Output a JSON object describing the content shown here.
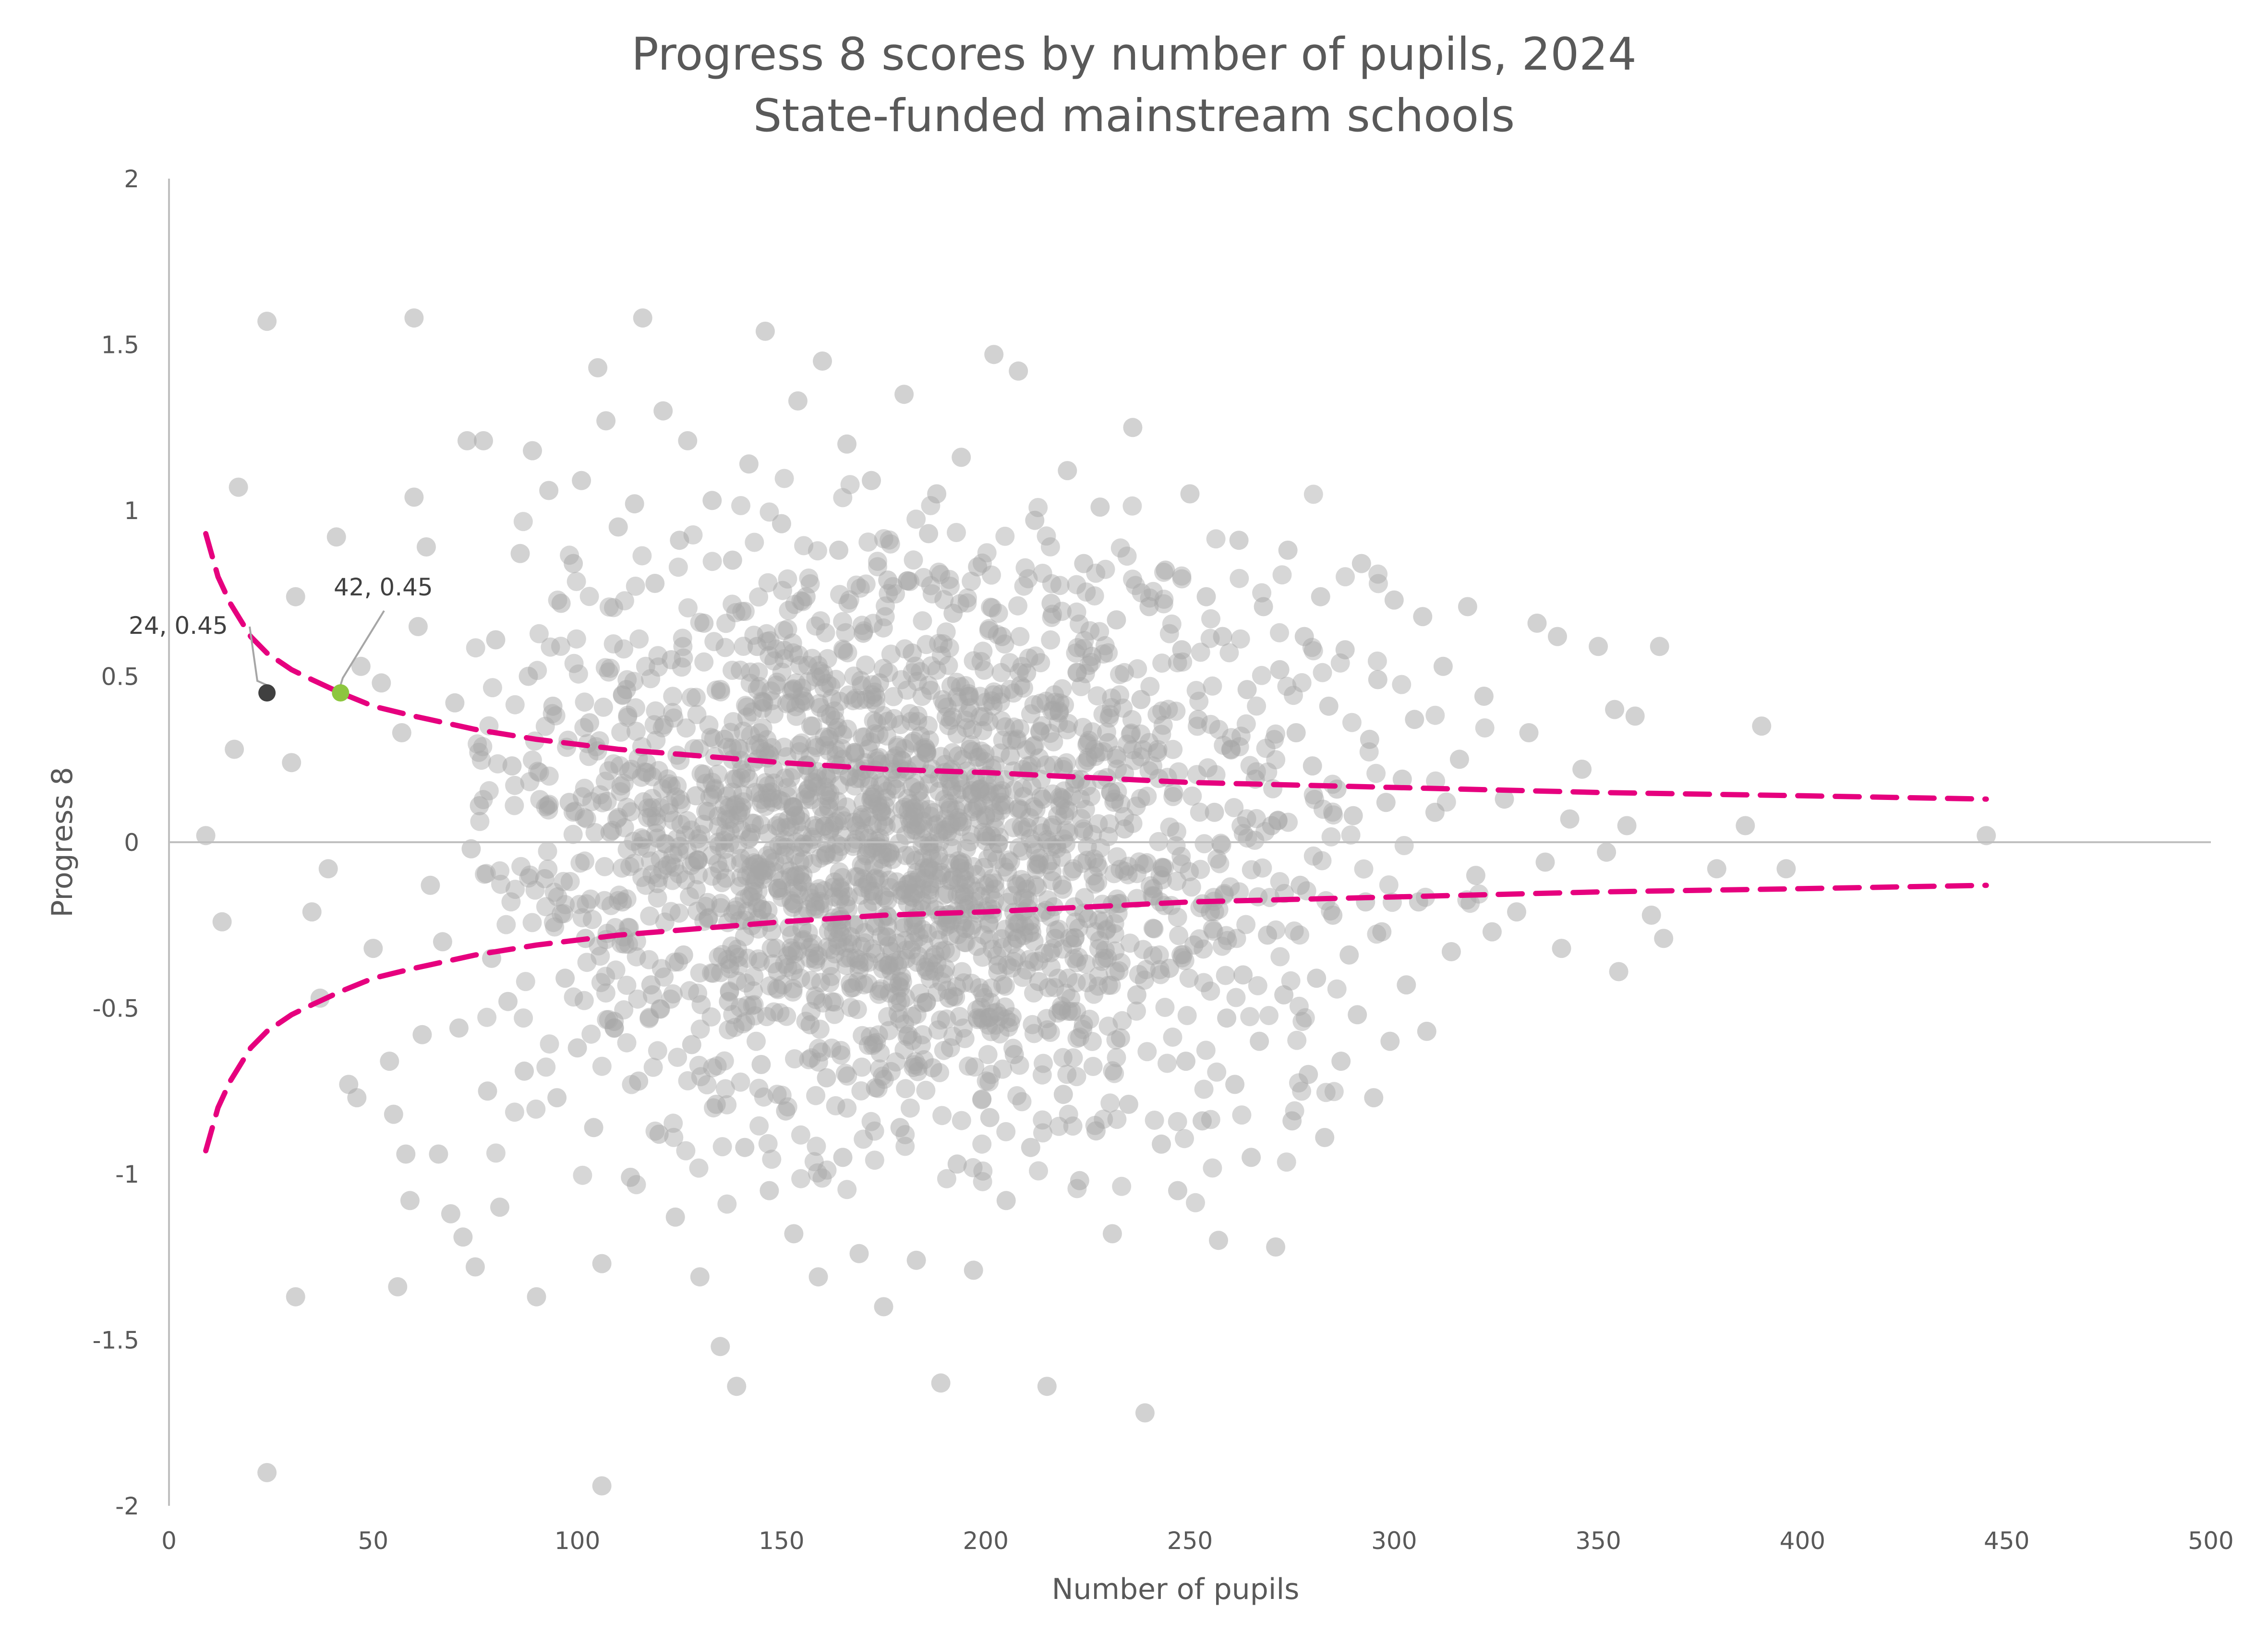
{
  "chart_data": {
    "type": "scatter",
    "title": "Progress 8 scores by number of pupils, 2024",
    "subtitle": "State-funded mainstream schools",
    "xlabel": "Number of pupils",
    "ylabel": "Progress 8",
    "xlim": [
      0,
      500
    ],
    "ylim": [
      -2,
      2
    ],
    "x_ticks": [
      "0",
      "50",
      "100",
      "150",
      "200",
      "250",
      "300",
      "350",
      "400",
      "450",
      "500"
    ],
    "y_ticks": [
      "2",
      "1.5",
      "1",
      "0.5",
      "0",
      "-0.5",
      "-1",
      "-1.5",
      "-2"
    ],
    "grid": false,
    "legend": "none",
    "colors": {
      "points": "#a6a6a6",
      "confidence_band": "#e6007e",
      "highlight_dark": "#404040",
      "highlight_green": "#8dc63f",
      "zero_line": "#bfbfbf",
      "axis": "#bfbfbf"
    },
    "confidence_band": {
      "x": [
        9,
        12,
        15,
        20,
        24,
        30,
        35,
        42,
        50,
        60,
        75,
        90,
        110,
        130,
        150,
        175,
        200,
        250,
        300,
        350,
        400,
        445
      ],
      "upper": [
        0.93,
        0.8,
        0.72,
        0.62,
        0.57,
        0.52,
        0.49,
        0.45,
        0.41,
        0.38,
        0.34,
        0.31,
        0.28,
        0.26,
        0.24,
        0.22,
        0.21,
        0.18,
        0.165,
        0.15,
        0.14,
        0.13
      ],
      "lower": [
        -0.93,
        -0.8,
        -0.72,
        -0.62,
        -0.57,
        -0.52,
        -0.49,
        -0.45,
        -0.41,
        -0.38,
        -0.34,
        -0.31,
        -0.28,
        -0.26,
        -0.24,
        -0.22,
        -0.21,
        -0.18,
        -0.165,
        -0.15,
        -0.14,
        -0.13
      ]
    },
    "highlighted_points": [
      {
        "x": 24,
        "y": 0.45,
        "label": "24, 0.45",
        "color": "#404040"
      },
      {
        "x": 42,
        "y": 0.45,
        "label": "42, 0.45",
        "color": "#8dc63f"
      }
    ],
    "points": [
      [
        9,
        0.02
      ],
      [
        13,
        -0.24
      ],
      [
        16,
        0.28
      ],
      [
        17,
        1.07
      ],
      [
        24,
        1.57
      ],
      [
        24,
        -1.9
      ],
      [
        30,
        0.24
      ],
      [
        31,
        -1.37
      ],
      [
        31,
        0.74
      ],
      [
        35,
        -0.21
      ],
      [
        37,
        -0.47
      ],
      [
        39,
        -0.08
      ],
      [
        41,
        0.92
      ],
      [
        44,
        -0.73
      ],
      [
        46,
        -0.77
      ],
      [
        47,
        0.53
      ],
      [
        50,
        -0.32
      ],
      [
        52,
        0.48
      ],
      [
        54,
        -0.66
      ],
      [
        55,
        -0.82
      ],
      [
        56,
        -1.34
      ],
      [
        57,
        0.33
      ],
      [
        58,
        -0.94
      ],
      [
        59,
        -1.08
      ],
      [
        60,
        1.04
      ],
      [
        60,
        1.58
      ],
      [
        61,
        0.65
      ],
      [
        62,
        -0.58
      ],
      [
        63,
        0.89
      ],
      [
        64,
        -0.13
      ],
      [
        66,
        -0.94
      ],
      [
        67,
        -0.3
      ],
      [
        69,
        -1.12
      ],
      [
        70,
        0.42
      ],
      [
        71,
        -0.56
      ],
      [
        72,
        -1.19
      ],
      [
        73,
        1.21
      ],
      [
        74,
        -0.02
      ],
      [
        75,
        -1.28
      ],
      [
        76,
        0.11
      ],
      [
        77,
        1.21
      ],
      [
        78,
        -0.75
      ],
      [
        79,
        -0.35
      ],
      [
        80,
        0.61
      ],
      [
        81,
        -1.1
      ],
      [
        83,
        -0.48
      ],
      [
        84,
        0.23
      ],
      [
        86,
        0.87
      ],
      [
        87,
        -0.69
      ],
      [
        88,
        0.5
      ],
      [
        89,
        1.18
      ],
      [
        90,
        -1.37
      ],
      [
        92,
        -0.11
      ],
      [
        93,
        1.06
      ],
      [
        94,
        0.41
      ],
      [
        95,
        -0.77
      ],
      [
        96,
        0.72
      ],
      [
        97,
        -0.41
      ],
      [
        98,
        0.12
      ],
      [
        99,
        0.84
      ],
      [
        100,
        -0.62
      ],
      [
        101,
        1.09
      ],
      [
        102,
        -0.29
      ],
      [
        103,
        0.36
      ],
      [
        104,
        -0.86
      ],
      [
        105,
        1.43
      ],
      [
        106,
        -1.27
      ],
      [
        106,
        -1.94
      ],
      [
        107,
        1.27
      ],
      [
        108,
        0.03
      ],
      [
        109,
        -0.54
      ],
      [
        110,
        0.95
      ],
      [
        111,
        -0.18
      ],
      [
        112,
        0.46
      ],
      [
        113,
        -1.01
      ],
      [
        114,
        1.02
      ],
      [
        115,
        -0.72
      ],
      [
        116,
        1.58
      ],
      [
        117,
        0.21
      ],
      [
        118,
        -0.43
      ],
      [
        119,
        0.78
      ],
      [
        120,
        -0.88
      ],
      [
        121,
        1.3
      ],
      [
        122,
        -0.07
      ],
      [
        123,
        0.55
      ],
      [
        124,
        -1.13
      ],
      [
        125,
        0.91
      ],
      [
        126,
        -0.34
      ],
      [
        127,
        1.21
      ],
      [
        128,
        -0.61
      ],
      [
        129,
        0.14
      ],
      [
        130,
        -1.31
      ],
      [
        131,
        0.66
      ],
      [
        132,
        -0.23
      ],
      [
        133,
        1.03
      ],
      [
        134,
        -0.79
      ],
      [
        135,
        -1.52
      ],
      [
        136,
        0.31
      ],
      [
        137,
        -0.48
      ],
      [
        138,
        0.85
      ],
      [
        139,
        -1.64
      ],
      [
        140,
        0.09
      ],
      [
        141,
        -0.92
      ],
      [
        142,
        1.14
      ],
      [
        143,
        -0.15
      ],
      [
        144,
        0.59
      ],
      [
        145,
        -0.67
      ],
      [
        146,
        1.54
      ],
      [
        147,
        -1.05
      ],
      [
        148,
        0.22
      ],
      [
        149,
        -0.39
      ],
      [
        150,
        0.96
      ],
      [
        151,
        -0.81
      ],
      [
        152,
        0.42
      ],
      [
        153,
        -1.18
      ],
      [
        154,
        1.33
      ],
      [
        155,
        -0.26
      ],
      [
        156,
        0.74
      ],
      [
        157,
        -0.55
      ],
      [
        158,
        0.05
      ],
      [
        159,
        -1.31
      ],
      [
        160,
        1.45
      ],
      [
        161,
        -0.71
      ],
      [
        162,
        0.38
      ],
      [
        163,
        -0.12
      ],
      [
        164,
        0.88
      ],
      [
        165,
        -0.95
      ],
      [
        166,
        1.2
      ],
      [
        167,
        -0.44
      ],
      [
        168,
        0.27
      ],
      [
        169,
        -1.24
      ],
      [
        170,
        0.63
      ],
      [
        171,
        -0.2
      ],
      [
        172,
        1.09
      ],
      [
        173,
        -0.74
      ],
      [
        174,
        0.48
      ],
      [
        175,
        -1.4
      ],
      [
        176,
        0.79
      ],
      [
        177,
        -0.33
      ],
      [
        178,
        0.16
      ],
      [
        179,
        -0.86
      ],
      [
        180,
        1.35
      ],
      [
        181,
        -0.58
      ],
      [
        182,
        0.57
      ],
      [
        183,
        -1.26
      ],
      [
        184,
        0.32
      ],
      [
        185,
        -0.11
      ],
      [
        186,
        0.93
      ],
      [
        187,
        -0.68
      ],
      [
        188,
        1.05
      ],
      [
        189,
        -1.63
      ],
      [
        190,
        0.21
      ],
      [
        191,
        -0.47
      ],
      [
        192,
        0.69
      ],
      [
        193,
        -0.97
      ],
      [
        194,
        1.16
      ],
      [
        195,
        -0.26
      ],
      [
        196,
        0.44
      ],
      [
        197,
        -1.29
      ],
      [
        198,
        0.83
      ],
      [
        199,
        -0.53
      ],
      [
        200,
        0.08
      ],
      [
        201,
        -0.83
      ],
      [
        202,
        1.47
      ],
      [
        203,
        -0.37
      ],
      [
        204,
        0.62
      ],
      [
        205,
        -1.08
      ],
      [
        206,
        0.26
      ],
      [
        207,
        -0.64
      ],
      [
        208,
        1.42
      ],
      [
        209,
        -0.17
      ],
      [
        210,
        0.51
      ],
      [
        211,
        -0.92
      ],
      [
        212,
        0.97
      ],
      [
        213,
        -0.42
      ],
      [
        214,
        0.13
      ],
      [
        215,
        -1.64
      ],
      [
        216,
        0.72
      ],
      [
        217,
        -0.29
      ],
      [
        218,
        0.39
      ],
      [
        219,
        -0.76
      ],
      [
        220,
        1.12
      ],
      [
        221,
        -0.51
      ],
      [
        222,
        0.19
      ],
      [
        223,
        -1.02
      ],
      [
        224,
        0.84
      ],
      [
        225,
        -0.23
      ],
      [
        226,
        0.56
      ],
      [
        227,
        -0.87
      ],
      [
        228,
        1.01
      ],
      [
        229,
        -0.35
      ],
      [
        230,
        0.3
      ],
      [
        231,
        -1.18
      ],
      [
        232,
        0.67
      ],
      [
        233,
        -0.59
      ],
      [
        234,
        0.04
      ],
      [
        235,
        -0.79
      ],
      [
        236,
        1.25
      ],
      [
        237,
        -0.46
      ],
      [
        238,
        0.43
      ],
      [
        239,
        -1.72
      ],
      [
        240,
        0.71
      ],
      [
        241,
        -0.14
      ],
      [
        242,
        0.27
      ],
      [
        243,
        -0.91
      ],
      [
        244,
        0.82
      ],
      [
        245,
        -0.38
      ],
      [
        246,
        0.15
      ],
      [
        247,
        -1.05
      ],
      [
        248,
        0.58
      ],
      [
        249,
        -0.66
      ],
      [
        250,
        1.05
      ],
      [
        251,
        -0.31
      ],
      [
        252,
        0.37
      ],
      [
        253,
        -0.84
      ],
      [
        254,
        0.74
      ],
      [
        255,
        -0.21
      ],
      [
        256,
        0.09
      ],
      [
        257,
        -1.2
      ],
      [
        258,
        0.62
      ],
      [
        259,
        -0.53
      ],
      [
        260,
        0.28
      ],
      [
        261,
        -0.73
      ],
      [
        262,
        0.91
      ],
      [
        263,
        -0.4
      ],
      [
        264,
        0.46
      ],
      [
        265,
        -0.95
      ],
      [
        266,
        0.19
      ],
      [
        267,
        -0.6
      ],
      [
        268,
        0.71
      ],
      [
        269,
        -0.28
      ],
      [
        270,
        0.05
      ],
      [
        271,
        -1.22
      ],
      [
        272,
        0.52
      ],
      [
        273,
        -0.46
      ],
      [
        274,
        0.88
      ],
      [
        275,
        -0.84
      ],
      [
        276,
        0.33
      ],
      [
        277,
        -0.13
      ],
      [
        278,
        0.62
      ],
      [
        279,
        -0.7
      ],
      [
        280,
        0.23
      ],
      [
        281,
        -0.41
      ],
      [
        282,
        0.74
      ],
      [
        283,
        -0.89
      ],
      [
        284,
        0.41
      ],
      [
        285,
        -0.22
      ],
      [
        286,
        0.16
      ],
      [
        287,
        -0.66
      ],
      [
        288,
        0.58
      ],
      [
        289,
        -0.34
      ],
      [
        290,
        0.08
      ],
      [
        291,
        -0.52
      ],
      [
        292,
        0.84
      ],
      [
        293,
        -0.18
      ],
      [
        294,
        0.31
      ],
      [
        295,
        -0.77
      ],
      [
        296,
        0.49
      ],
      [
        297,
        -0.27
      ],
      [
        298,
        0.12
      ],
      [
        299,
        -0.6
      ],
      [
        300,
        0.73
      ],
      [
        302,
        0.19
      ],
      [
        303,
        -0.43
      ],
      [
        305,
        0.37
      ],
      [
        306,
        -0.18
      ],
      [
        307,
        0.68
      ],
      [
        308,
        -0.57
      ],
      [
        310,
        0.09
      ],
      [
        312,
        0.53
      ],
      [
        314,
        -0.33
      ],
      [
        316,
        0.25
      ],
      [
        318,
        0.71
      ],
      [
        320,
        -0.1
      ],
      [
        322,
        0.44
      ],
      [
        324,
        -0.27
      ],
      [
        327,
        0.13
      ],
      [
        330,
        -0.21
      ],
      [
        333,
        0.33
      ],
      [
        335,
        0.66
      ],
      [
        337,
        -0.06
      ],
      [
        340,
        0.62
      ],
      [
        341,
        -0.32
      ],
      [
        343,
        0.07
      ],
      [
        346,
        0.22
      ],
      [
        350,
        0.59
      ],
      [
        352,
        -0.03
      ],
      [
        354,
        0.4
      ],
      [
        355,
        -0.39
      ],
      [
        357,
        0.05
      ],
      [
        359,
        0.38
      ],
      [
        363,
        -0.22
      ],
      [
        365,
        0.59
      ],
      [
        366,
        -0.29
      ],
      [
        379,
        -0.08
      ],
      [
        386,
        0.05
      ],
      [
        390,
        0.35
      ],
      [
        396,
        -0.08
      ],
      [
        445,
        0.02
      ]
    ],
    "dense_cluster": {
      "x_mean": 180,
      "x_sd": 48,
      "y_mean": 0.0,
      "y_sd": 0.42,
      "count": 2200,
      "x_range": [
        75,
        330
      ],
      "y_range": [
        -1.1,
        1.1
      ]
    }
  }
}
